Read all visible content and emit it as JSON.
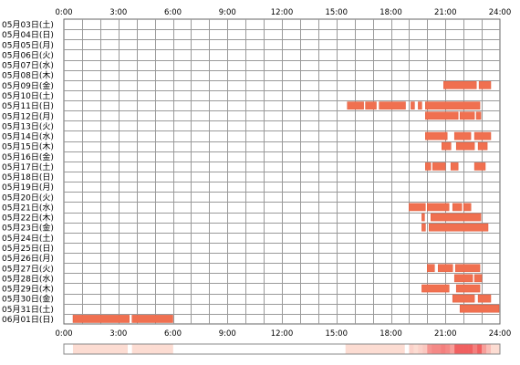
{
  "chart_data": {
    "type": "timeline",
    "x_ticks": [
      "0:00",
      "3:00",
      "6:00",
      "9:00",
      "12:00",
      "15:00",
      "18:00",
      "21:00",
      "24:00"
    ],
    "x_range_hours": [
      0,
      24
    ],
    "gridlines_every_hours": 1,
    "grid": true,
    "bar_color": "#f07050",
    "bar_edge_color": "#e05a3a",
    "density_strip": {
      "low_color": "#fde6dc",
      "high_color": "#f06060",
      "visible": true
    },
    "rows": [
      {
        "label": "05月03日(土)",
        "intervals": []
      },
      {
        "label": "05月04日(日)",
        "intervals": []
      },
      {
        "label": "05月05日(月)",
        "intervals": []
      },
      {
        "label": "05月06日(火)",
        "intervals": []
      },
      {
        "label": "05月07日(水)",
        "intervals": []
      },
      {
        "label": "05月08日(木)",
        "intervals": []
      },
      {
        "label": "05月09日(金)",
        "intervals": [
          [
            20.9,
            22.7
          ],
          [
            22.85,
            23.5
          ]
        ]
      },
      {
        "label": "05月10日(土)",
        "intervals": []
      },
      {
        "label": "05月11日(日)",
        "intervals": [
          [
            15.6,
            16.5
          ],
          [
            16.6,
            17.2
          ],
          [
            17.35,
            18.8
          ],
          [
            19.1,
            19.3
          ],
          [
            19.5,
            19.7
          ],
          [
            19.9,
            22.9
          ]
        ]
      },
      {
        "label": "05月12日(月)",
        "intervals": [
          [
            19.9,
            21.7
          ],
          [
            21.8,
            22.6
          ],
          [
            22.7,
            22.95
          ]
        ]
      },
      {
        "label": "05月13日(火)",
        "intervals": []
      },
      {
        "label": "05月14日(水)",
        "intervals": [
          [
            19.9,
            21.1
          ],
          [
            21.5,
            22.4
          ],
          [
            22.6,
            23.5
          ]
        ]
      },
      {
        "label": "05月15日(木)",
        "intervals": [
          [
            20.8,
            21.3
          ],
          [
            21.6,
            22.6
          ],
          [
            22.8,
            23.3
          ]
        ]
      },
      {
        "label": "05月16日(金)",
        "intervals": []
      },
      {
        "label": "05月17日(土)",
        "intervals": [
          [
            19.9,
            20.2
          ],
          [
            20.3,
            21.0
          ],
          [
            21.3,
            21.7
          ],
          [
            22.6,
            23.2
          ]
        ]
      },
      {
        "label": "05月18日(日)",
        "intervals": []
      },
      {
        "label": "05月19日(月)",
        "intervals": []
      },
      {
        "label": "05月20日(火)",
        "intervals": []
      },
      {
        "label": "05月21日(水)",
        "intervals": [
          [
            19.0,
            19.9
          ],
          [
            20.0,
            21.2
          ],
          [
            21.4,
            21.9
          ],
          [
            22.0,
            22.4
          ]
        ]
      },
      {
        "label": "05月22日(木)",
        "intervals": [
          [
            19.7,
            19.85
          ],
          [
            20.2,
            22.95
          ]
        ]
      },
      {
        "label": "05月23日(金)",
        "intervals": [
          [
            19.7,
            19.9
          ],
          [
            20.1,
            23.35
          ]
        ]
      },
      {
        "label": "05月24日(土)",
        "intervals": []
      },
      {
        "label": "05月25日(日)",
        "intervals": []
      },
      {
        "label": "05月26日(月)",
        "intervals": []
      },
      {
        "label": "05月27日(火)",
        "intervals": [
          [
            20.0,
            20.4
          ],
          [
            20.6,
            21.4
          ],
          [
            21.55,
            22.9
          ]
        ]
      },
      {
        "label": "05月28日(水)",
        "intervals": [
          [
            21.5,
            22.5
          ],
          [
            22.6,
            23.0
          ]
        ]
      },
      {
        "label": "05月29日(木)",
        "intervals": [
          [
            19.7,
            21.2
          ],
          [
            21.6,
            22.9
          ]
        ]
      },
      {
        "label": "05月30日(金)",
        "intervals": [
          [
            21.4,
            22.6
          ],
          [
            22.8,
            23.5
          ]
        ]
      },
      {
        "label": "05月31日(土)",
        "intervals": [
          [
            21.8,
            23.95
          ]
        ]
      },
      {
        "label": "06月01日(日)",
        "intervals": [
          [
            0.5,
            3.6
          ],
          [
            3.75,
            6.0
          ]
        ]
      }
    ]
  }
}
